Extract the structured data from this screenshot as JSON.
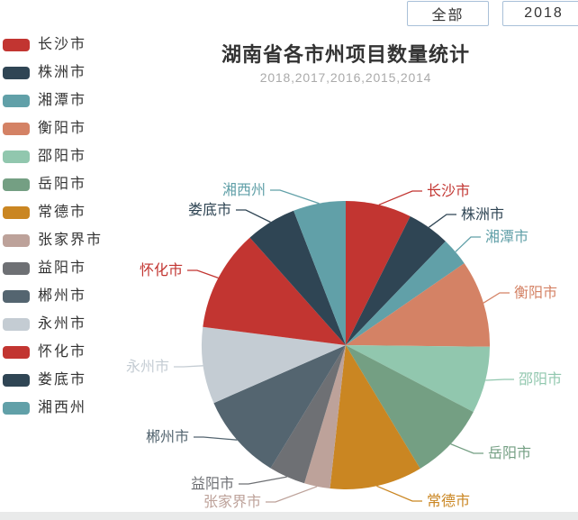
{
  "toolbar": {
    "buttons": [
      {
        "label": "全部"
      },
      {
        "label": "2018"
      }
    ],
    "border_color": "#a9c0d8"
  },
  "chart": {
    "title": "湖南省各市州项目数量统计",
    "subtitle": "2018,2017,2016,2015,2014",
    "title_color": "#333333",
    "subtitle_color": "#aaaaaa"
  },
  "chart_data": {
    "type": "pie",
    "title": "湖南省各市州项目数量统计",
    "subtitle": "2018,2017,2016,2015,2014",
    "legend_position": "left",
    "start_angle": "top",
    "clockwise": true,
    "categories": [
      "长沙市",
      "株洲市",
      "湘潭市",
      "衡阳市",
      "邵阳市",
      "岳阳市",
      "常德市",
      "张家界市",
      "益阳市",
      "郴州市",
      "永州市",
      "怀化市",
      "娄底市",
      "湘西州"
    ],
    "values": [
      7.4,
      4.8,
      3.2,
      9.8,
      7.5,
      8.7,
      10.4,
      2.9,
      4.1,
      9.7,
      8.6,
      11.4,
      5.7,
      5.9
    ],
    "values_unit": "percent share, estimated from slice arc angles (no numeric labels shown in chart)",
    "colors": [
      "#c23531",
      "#2f4554",
      "#61a0a8",
      "#d48265",
      "#91c7ae",
      "#749f83",
      "#ca8622",
      "#bda29a",
      "#6e7074",
      "#546570",
      "#c4ccd3",
      "#c23531",
      "#2f4554",
      "#61a0a8"
    ]
  },
  "footer": {
    "strip_color": "#e9eaea"
  }
}
